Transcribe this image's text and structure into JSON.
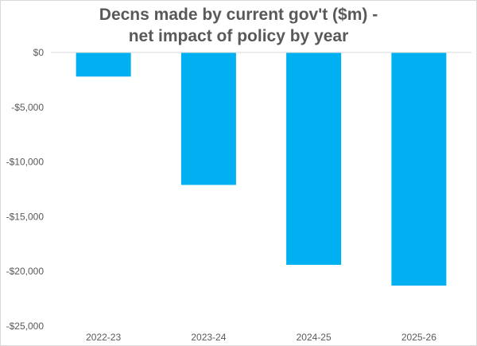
{
  "chart_data": {
    "type": "bar",
    "title_lines": [
      "Decns made by current gov't ($m) -",
      "net impact of policy by year"
    ],
    "categories": [
      "2022-23",
      "2023-24",
      "2024-25",
      "2025-26"
    ],
    "values": [
      -2200,
      -12100,
      -19400,
      -21300
    ],
    "ylim": [
      -25000,
      0
    ],
    "yticks": [
      0,
      -5000,
      -10000,
      -15000,
      -20000,
      -25000
    ],
    "ytick_labels": [
      "$0",
      "-$5,000",
      "-$10,000",
      "-$15,000",
      "-$20,000",
      "-$25,000"
    ],
    "bar_color": "#00b0f0",
    "grid": false,
    "legend": "none"
  }
}
